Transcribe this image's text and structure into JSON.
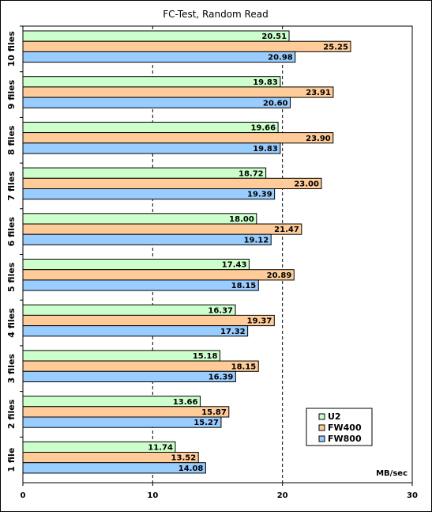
{
  "chart_data": {
    "type": "bar",
    "orientation": "horizontal",
    "title": "FC-Test, Random Read",
    "xlabel": "MB/sec",
    "ylabel": "",
    "xlim": [
      0,
      30
    ],
    "xticks": [
      0,
      10,
      20,
      30
    ],
    "grid": "vertical dashed",
    "legend_position": "bottom-right",
    "categories": [
      "10 files",
      "9 files",
      "8 files",
      "7 files",
      "6 files",
      "5 files",
      "4 files",
      "3 files",
      "2 files",
      "1 file"
    ],
    "series": [
      {
        "name": "U2",
        "color": "#ccffcc",
        "values": [
          20.51,
          19.83,
          19.66,
          18.72,
          18.0,
          17.43,
          16.37,
          15.18,
          13.66,
          11.74
        ],
        "labels": [
          "20.51",
          "19.83",
          "19.66",
          "18.72",
          "18.00",
          "17.43",
          "16.37",
          "15.18",
          "13.66",
          "11.74"
        ]
      },
      {
        "name": "FW400",
        "color": "#ffcc99",
        "values": [
          25.25,
          23.91,
          23.9,
          23.0,
          21.47,
          20.89,
          19.37,
          18.15,
          15.87,
          13.52
        ],
        "labels": [
          "25.25",
          "23.91",
          "23.90",
          "23.00",
          "21.47",
          "20.89",
          "19.37",
          "18.15",
          "15.87",
          "13.52"
        ]
      },
      {
        "name": "FW800",
        "color": "#99ccff",
        "values": [
          20.98,
          20.6,
          19.83,
          19.39,
          19.12,
          18.15,
          17.32,
          16.39,
          15.27,
          14.08
        ],
        "labels": [
          "20.98",
          "20.60",
          "19.83",
          "19.39",
          "19.12",
          "18.15",
          "17.32",
          "16.39",
          "15.27",
          "14.08"
        ]
      }
    ]
  }
}
